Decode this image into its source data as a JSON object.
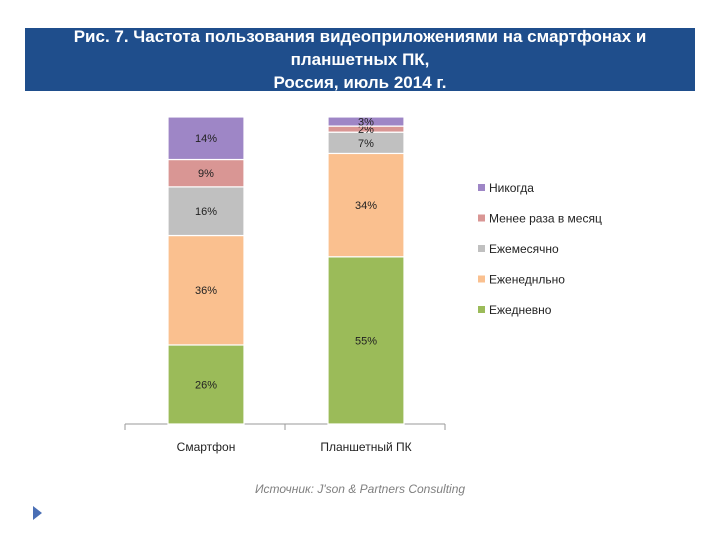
{
  "title_lines": [
    "Рис. 7. Частота пользования видеоприложениями на смартфонах и планшетных ПК,",
    "Россия, июль 2014 г."
  ],
  "source": "Источник: J'son & Partners Consulting",
  "chart_data": {
    "type": "bar",
    "stacked": true,
    "categories": [
      "Смартфон",
      "Планшетный ПК"
    ],
    "series": [
      {
        "name": "Ежедневно",
        "values": [
          26,
          55
        ],
        "color": "#9bbb59"
      },
      {
        "name": "Еженеднльно",
        "values": [
          36,
          34
        ],
        "color": "#fac08f"
      },
      {
        "name": "Ежемесячно",
        "values": [
          16,
          7
        ],
        "color": "#c0c0c0"
      },
      {
        "name": "Менее раза в месяц",
        "values": [
          9,
          2
        ],
        "color": "#d99694"
      },
      {
        "name": "Никогда",
        "values": [
          14,
          3
        ],
        "color": "#9e86c6"
      }
    ],
    "labels": [
      [
        "26%",
        "55%"
      ],
      [
        "36%",
        "34%"
      ],
      [
        "16%",
        "7%"
      ],
      [
        "9%",
        "2%"
      ],
      [
        "14%",
        "3%"
      ]
    ],
    "ylim": [
      0,
      100
    ],
    "legend": "right",
    "grid": false
  }
}
